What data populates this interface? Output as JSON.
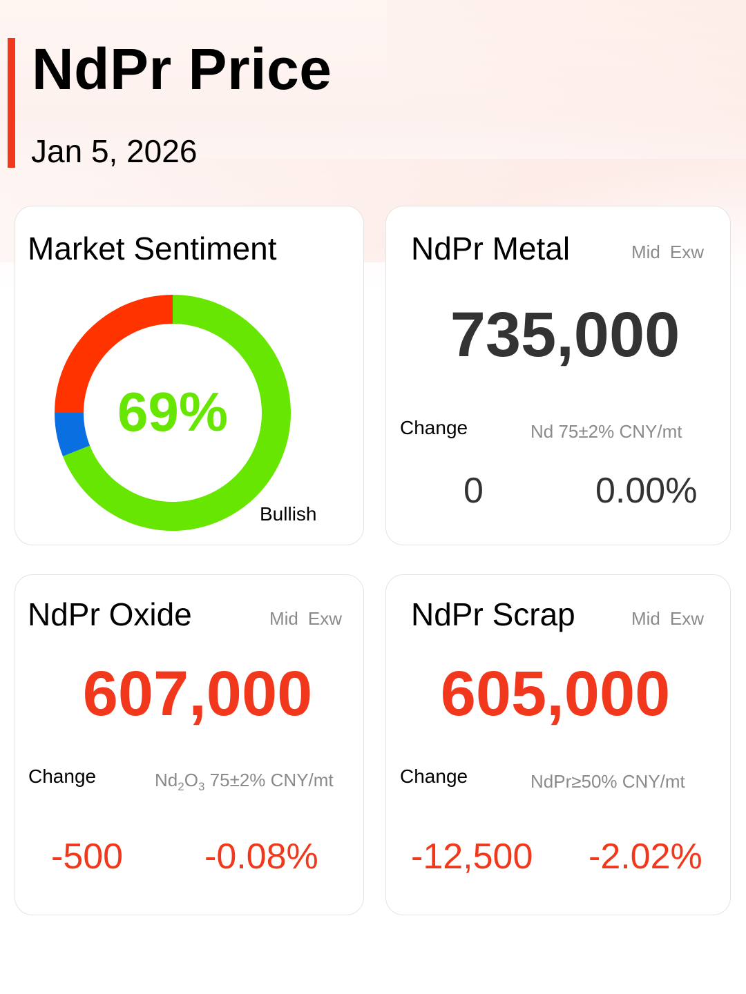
{
  "header": {
    "title": "NdPr Price",
    "date": "Jan 5, 2026",
    "accent_color": "#f2381c"
  },
  "sentiment": {
    "title": "Market Sentiment",
    "percent_label": "69%",
    "label": "Bullish",
    "segments": [
      {
        "name": "bullish",
        "fraction": 0.69,
        "color": "#66e600"
      },
      {
        "name": "neutral",
        "fraction": 0.06,
        "color": "#0a6fe0"
      },
      {
        "name": "bearish",
        "fraction": 0.25,
        "color": "#ff3300"
      }
    ]
  },
  "metal": {
    "title": "NdPr Metal",
    "tag_mid": "Mid",
    "tag_exw": "Exw",
    "price": "735,000",
    "change_label": "Change",
    "spec": "Nd 75±2% CNY/mt",
    "change_abs": "0",
    "change_pct": "0.00%",
    "trend": "flat"
  },
  "oxide": {
    "title": "NdPr Oxide",
    "tag_mid": "Mid",
    "tag_exw": "Exw",
    "price": "607,000",
    "change_label": "Change",
    "spec_prefix": "Nd",
    "spec_sub1": "2",
    "spec_mid": "O",
    "spec_sub2": "3",
    "spec_suffix": " 75±2% CNY/mt",
    "change_abs": "-500",
    "change_pct": "-0.08%",
    "trend": "down"
  },
  "scrap": {
    "title": "NdPr Scrap",
    "tag_mid": "Mid",
    "tag_exw": "Exw",
    "price": "605,000",
    "change_label": "Change",
    "spec": "NdPr≥50% CNY/mt",
    "change_abs": "-12,500",
    "change_pct": "-2.02%",
    "trend": "down"
  }
}
